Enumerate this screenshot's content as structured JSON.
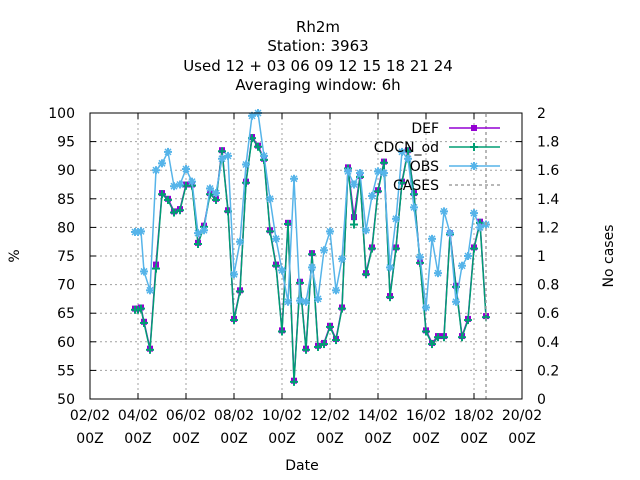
{
  "chart_data": {
    "type": "line",
    "title_lines": [
      "Rh2m",
      "Station:     3963",
      "Used  12 + 03 06 09 12 15 18 21 24",
      "Averaging window:  6h"
    ],
    "xlabel": "Date",
    "ylabel": "%",
    "y2label": "No cases",
    "xlim": [
      0,
      18
    ],
    "ylim": [
      50,
      100
    ],
    "y2lim": [
      0,
      2
    ],
    "x_ticks": [
      {
        "value": 0,
        "line1": "02/02",
        "line2": "00Z"
      },
      {
        "value": 2,
        "line1": "04/02",
        "line2": "00Z"
      },
      {
        "value": 4,
        "line1": "06/02",
        "line2": "00Z"
      },
      {
        "value": 6,
        "line1": "08/02",
        "line2": "00Z"
      },
      {
        "value": 8,
        "line1": "10/02",
        "line2": "00Z"
      },
      {
        "value": 10,
        "line1": "12/02",
        "line2": "00Z"
      },
      {
        "value": 12,
        "line1": "14/02",
        "line2": "00Z"
      },
      {
        "value": 14,
        "line1": "16/02",
        "line2": "00Z"
      },
      {
        "value": 16,
        "line1": "18/02",
        "line2": "00Z"
      },
      {
        "value": 18,
        "line1": "20/02",
        "line2": "00Z"
      }
    ],
    "y_ticks": [
      50,
      55,
      60,
      65,
      70,
      75,
      80,
      85,
      90,
      95,
      100
    ],
    "y2_ticks": [
      {
        "value": 0,
        "label": "0"
      },
      {
        "value": 0.2,
        "label": "0.2"
      },
      {
        "value": 0.4,
        "label": "0.4"
      },
      {
        "value": 0.6,
        "label": "0.6"
      },
      {
        "value": 0.8,
        "label": "0.8"
      },
      {
        "value": 1.0,
        "label": "1"
      },
      {
        "value": 1.2,
        "label": "1.2"
      },
      {
        "value": 1.4,
        "label": "1.4"
      },
      {
        "value": 1.6,
        "label": "1.6"
      },
      {
        "value": 1.8,
        "label": "1.8"
      },
      {
        "value": 2.0,
        "label": "2"
      }
    ],
    "grid": true,
    "legend_position": "top-right",
    "series": [
      {
        "name": "DEF",
        "color": "#9400d3",
        "axis": "y",
        "style": "line-points",
        "x": [
          1.875,
          2.0,
          2.125,
          2.25,
          2.5,
          2.75,
          3.0,
          3.25,
          3.5,
          3.75,
          4.0,
          4.25,
          4.5,
          4.75,
          5.0,
          5.25,
          5.5,
          5.75,
          6.0,
          6.25,
          6.5,
          6.75,
          7.0,
          7.25,
          7.5,
          7.75,
          8.0,
          8.25,
          8.5,
          8.75,
          9.0,
          9.25,
          9.5,
          9.75,
          10.0,
          10.25,
          10.5,
          10.75,
          11.0,
          11.25,
          11.5,
          11.75,
          12.0,
          12.25,
          12.5,
          12.75,
          13.0,
          13.25,
          13.5,
          13.75,
          14.0,
          14.25,
          14.5,
          14.75,
          15.0,
          15.25,
          15.5,
          15.75,
          16.0,
          16.25,
          16.5
        ],
        "y": [
          65.8,
          65.8,
          66.0,
          63.5,
          58.8,
          73.5,
          86.0,
          85.0,
          82.8,
          83.2,
          87.5,
          87.5,
          77.3,
          80.3,
          86.0,
          85.0,
          93.5,
          83.0,
          64.0,
          69.0,
          88.0,
          95.8,
          94.3,
          92.0,
          79.5,
          73.5,
          62.0,
          80.8,
          53.2,
          70.5,
          58.8,
          75.5,
          59.3,
          59.8,
          62.8,
          60.5,
          66.0,
          90.5,
          81.8,
          89.0,
          72.0,
          76.5,
          86.5,
          91.5,
          68.0,
          76.5,
          88.0,
          93.5,
          86.0,
          74.0,
          62.0,
          59.8,
          61.0,
          61.0,
          79.0,
          69.8,
          61.0,
          64.0,
          76.5,
          81.0,
          64.5
        ]
      },
      {
        "name": "CDCN_od",
        "color": "#009e73",
        "axis": "y",
        "style": "line-points",
        "x": [
          1.875,
          2.0,
          2.125,
          2.25,
          2.5,
          2.75,
          3.0,
          3.25,
          3.5,
          3.75,
          4.0,
          4.25,
          4.5,
          4.75,
          5.0,
          5.25,
          5.5,
          5.75,
          6.0,
          6.25,
          6.5,
          6.75,
          7.0,
          7.25,
          7.5,
          7.75,
          8.0,
          8.25,
          8.5,
          8.75,
          9.0,
          9.25,
          9.5,
          9.75,
          10.0,
          10.25,
          10.5,
          10.75,
          11.0,
          11.25,
          11.5,
          11.75,
          12.0,
          12.25,
          12.5,
          12.75,
          13.0,
          13.25,
          13.5,
          13.75,
          14.0,
          14.25,
          14.5,
          14.75,
          15.0,
          15.25,
          15.5,
          15.75,
          16.0,
          16.25,
          16.5
        ],
        "y": [
          65.6,
          65.6,
          65.8,
          63.3,
          58.6,
          72.8,
          85.8,
          84.8,
          82.6,
          83.0,
          87.3,
          87.3,
          77.1,
          80.1,
          85.8,
          84.8,
          93.3,
          82.8,
          63.8,
          68.8,
          87.8,
          95.6,
          94.1,
          91.8,
          79.3,
          73.3,
          61.8,
          80.6,
          53.0,
          70.3,
          58.6,
          75.3,
          59.1,
          59.6,
          62.6,
          60.3,
          65.8,
          90.3,
          80.5,
          88.8,
          71.8,
          76.3,
          86.3,
          91.3,
          67.8,
          76.3,
          87.8,
          93.3,
          85.8,
          73.8,
          61.8,
          59.6,
          60.8,
          60.8,
          78.8,
          69.6,
          60.8,
          63.8,
          76.3,
          80.8,
          64.3
        ]
      },
      {
        "name": "OBS",
        "color": "#56b4e9",
        "axis": "y",
        "style": "line-points",
        "x": [
          1.875,
          2.0,
          2.125,
          2.25,
          2.5,
          2.75,
          3.0,
          3.25,
          3.5,
          3.75,
          4.0,
          4.25,
          4.5,
          4.75,
          5.0,
          5.25,
          5.5,
          5.75,
          6.0,
          6.25,
          6.5,
          6.75,
          7.0,
          7.25,
          7.5,
          7.75,
          8.0,
          8.25,
          8.5,
          8.75,
          9.0,
          9.25,
          9.5,
          9.75,
          10.0,
          10.25,
          10.5,
          10.75,
          11.0,
          11.25,
          11.5,
          11.75,
          12.0,
          12.25,
          12.5,
          12.75,
          13.0,
          13.25,
          13.5,
          13.75,
          14.0,
          14.25,
          14.5,
          14.75,
          15.0,
          15.25,
          15.5,
          15.75,
          16.0,
          16.25,
          16.5
        ],
        "y": [
          79.2,
          79.2,
          79.3,
          72.3,
          69.0,
          90.0,
          91.2,
          93.2,
          87.2,
          87.5,
          90.2,
          88.0,
          79.0,
          79.5,
          86.8,
          86.0,
          92.0,
          92.5,
          71.8,
          77.5,
          91.0,
          99.5,
          100.0,
          92.5,
          85.0,
          78.0,
          72.5,
          67.0,
          88.5,
          67.2,
          67.0,
          73.0,
          67.5,
          76.0,
          79.3,
          69.0,
          74.5,
          89.8,
          87.5,
          89.5,
          79.5,
          85.5,
          89.8,
          89.5,
          73.0,
          81.5,
          93.2,
          92.0,
          83.5,
          74.8,
          66.0,
          78.0,
          72.0,
          82.8,
          79.0,
          67.0,
          73.3,
          75.0,
          82.5,
          80.0,
          80.5
        ]
      },
      {
        "name": "CASES",
        "color": "#a0a0a0",
        "axis": "y2",
        "style": "dashed-steps",
        "x": [
          16.5,
          16.5
        ],
        "y": [
          0,
          2
        ]
      }
    ]
  }
}
